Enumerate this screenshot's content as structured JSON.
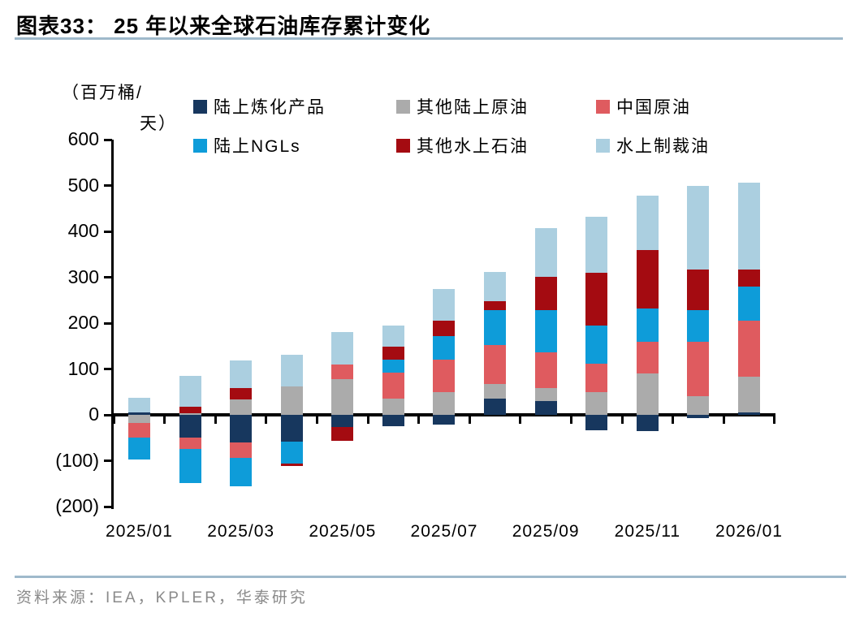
{
  "header": {
    "title": "图表33：  25 年以来全球石油库存累计变化"
  },
  "axis_unit": {
    "full": "（百万桶/天）",
    "lines": [
      "（百万桶/",
      "天）"
    ]
  },
  "chart_data": {
    "type": "bar",
    "stacked": true,
    "title": "25 年以来全球石油库存累计变化",
    "ylabel": "（百万桶/天）",
    "ylim": [
      -200,
      600
    ],
    "ytick_step": 100,
    "grid": false,
    "legend_position": "top",
    "y_tick_values": [
      600,
      500,
      400,
      300,
      200,
      100,
      0,
      -100,
      -200
    ],
    "y_tick_labels": [
      "600",
      "500",
      "400",
      "300",
      "200",
      "100",
      "0",
      "(100)",
      "(200)"
    ],
    "x_tick_labels": [
      "2025/01",
      "2025/03",
      "2025/05",
      "2025/07",
      "2025/09",
      "2025/11",
      "2026/01"
    ],
    "categories": [
      "2025/01",
      "2025/02",
      "2025/03",
      "2025/04",
      "2025/05",
      "2025/06",
      "2025/07",
      "2025/08",
      "2025/09",
      "2025/10",
      "2025/11",
      "2025/12",
      "2026/01"
    ],
    "series": [
      {
        "name": "陆上炼化产品",
        "color": "#17375e",
        "values": [
          5,
          -50,
          -60,
          -59,
          -26,
          -25,
          -22,
          35,
          30,
          -34,
          -35,
          -7,
          5
        ]
      },
      {
        "name": "其他陆上原油",
        "color": "#ababab",
        "values": [
          -18,
          3,
          33,
          62,
          78,
          36,
          50,
          33,
          28,
          50,
          90,
          40,
          78
        ]
      },
      {
        "name": "中国原油",
        "color": "#df5b5f",
        "values": [
          -32,
          -24,
          -34,
          0,
          32,
          56,
          70,
          85,
          79,
          61,
          69,
          120,
          123
        ]
      },
      {
        "name": "陆上NGLs",
        "color": "#0e9cd9",
        "values": [
          -47,
          -75,
          -61,
          -48,
          0,
          28,
          52,
          75,
          91,
          84,
          73,
          68,
          74
        ]
      },
      {
        "name": "其他水上石油",
        "color": "#a40b11",
        "values": [
          0,
          15,
          26,
          -5,
          -30,
          28,
          34,
          20,
          73,
          115,
          128,
          89,
          37
        ]
      },
      {
        "name": "水上制裁油",
        "color": "#abcfe0",
        "values": [
          32,
          67,
          59,
          69,
          70,
          47,
          69,
          64,
          106,
          122,
          117,
          183,
          189
        ]
      }
    ]
  },
  "footer": {
    "source": "资料来源：IEA，KPLER，华泰研究"
  }
}
